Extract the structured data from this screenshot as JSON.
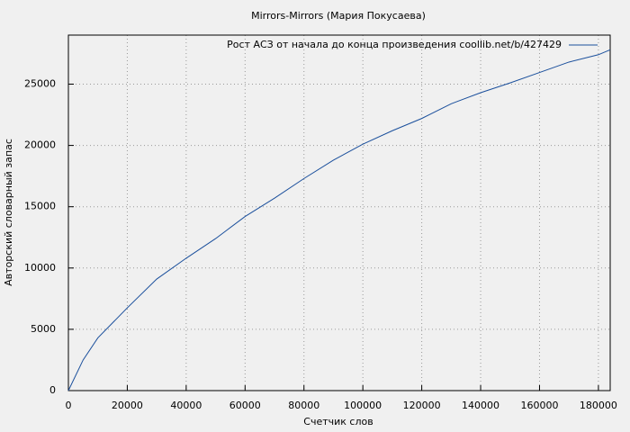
{
  "chart_data": {
    "type": "line",
    "title": "Mirrors-Mirrors (Мария Покусаева)",
    "x_label": "Счетчик слов",
    "y_label": "Авторский словарный запас",
    "x": [
      0,
      5000,
      10000,
      20000,
      30000,
      40000,
      50000,
      60000,
      70000,
      80000,
      90000,
      100000,
      110000,
      120000,
      130000,
      140000,
      150000,
      160000,
      170000,
      180000,
      184000
    ],
    "series": [
      {
        "name": "Рост АСЗ от начала до конца произведения coollib.net/b/427429",
        "color": "#1a4f9c",
        "values": [
          0,
          2500,
          4300,
          6750,
          9100,
          10800,
          12400,
          14200,
          15700,
          17300,
          18800,
          20100,
          21200,
          22200,
          23400,
          24300,
          25100,
          25950,
          26800,
          27400,
          27800
        ]
      }
    ],
    "xlim": [
      0,
      184000
    ],
    "ylim": [
      0,
      29000
    ],
    "xticks": [
      0,
      20000,
      40000,
      60000,
      80000,
      100000,
      120000,
      140000,
      160000,
      180000
    ],
    "yticks": [
      0,
      5000,
      10000,
      15000,
      20000,
      25000
    ],
    "grid": true,
    "legend": "top-right"
  }
}
